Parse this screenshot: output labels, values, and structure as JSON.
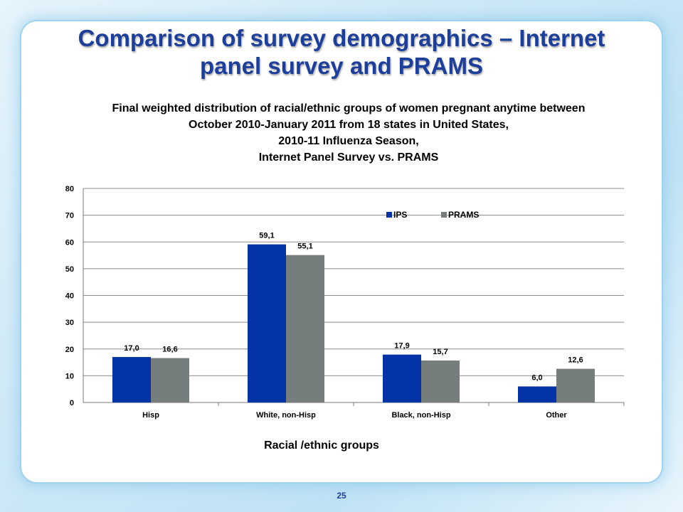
{
  "slide": {
    "title_line1": "Comparison of survey demographics – Internet",
    "title_line2": "panel survey and PRAMS",
    "page_number": "25"
  },
  "colors": {
    "ips": "#0433a7",
    "prams": "#767d7d",
    "title": "#1d3f9c",
    "gridline": "#8c8c8c"
  },
  "chart_data": {
    "type": "bar",
    "title": [
      "Final weighted distribution of racial/ethnic groups of women pregnant anytime between",
      "October 2010-January 2011 from 18 states in United States,",
      "2010-11 Influenza Season,",
      "Internet Panel Survey vs. PRAMS"
    ],
    "xlabel": "Racial /ethnic groups",
    "ylabel": "",
    "categories": [
      "Hisp",
      "White, non-Hisp",
      "Black, non-Hisp",
      "Other"
    ],
    "series": [
      {
        "name": "IPS",
        "values": [
          17.0,
          59.1,
          17.9,
          6.0
        ],
        "labels": [
          "17,0",
          "59,1",
          "17,9",
          "6,0"
        ]
      },
      {
        "name": "PRAMS",
        "values": [
          16.6,
          55.1,
          15.7,
          12.6
        ],
        "labels": [
          "16,6",
          "55,1",
          "15,7",
          "12,6"
        ]
      }
    ],
    "ylim": [
      0,
      80
    ],
    "yticks": [
      0,
      10,
      20,
      30,
      40,
      50,
      60,
      70,
      80
    ],
    "grid": true,
    "legend_position": "top-right, inside plot"
  }
}
